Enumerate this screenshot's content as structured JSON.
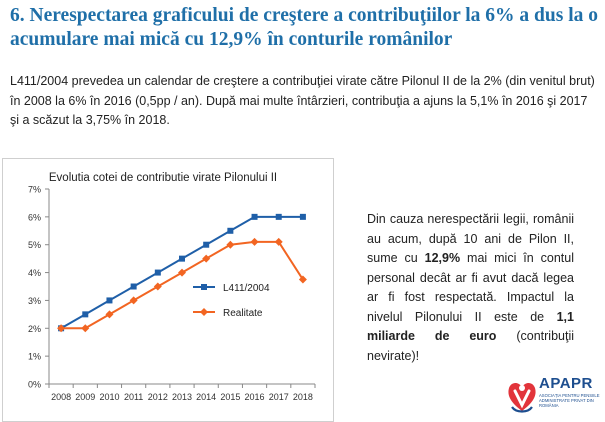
{
  "header": {
    "title": "6. Nerespectarea graficului de creştere a contribuţiilor la 6% a dus la o acumulare mai mică cu 12,9% în conturile românilor"
  },
  "intro": {
    "text": "L411/2004 prevedea un calendar de creştere a contribuţiei virate către Pilonul II de la 2% (din venitul brut) în 2008 la 6% în 2016 (0,5pp / an). După mai multe întârzieri, contribuţia a ajuns la 5,1% în 2016 şi 2017 şi a scăzut la 3,75% în 2018."
  },
  "side": {
    "p1_a": "Din cauza nerespectării legii, românii au acum, după 10 ani de Pilon II, sume cu ",
    "p1_b": "12,9%",
    "p1_c": " mai mici în contul personal decât ar fi avut dacă legea ar fi fost respectată.",
    "p2_a": "Impactul la nivelul Pilonului II este de ",
    "p2_b": "1,1 miliarde de euro",
    "p2_c": " (contribuţii nevirate)!"
  },
  "logo": {
    "name": "APAPR",
    "subtitle": "Asociația pentru pensiile administrate privat din România"
  },
  "chart_data": {
    "type": "line",
    "title": "Evolutia cotei de contributie virate Pilonului II",
    "categories": [
      "2008",
      "2009",
      "2010",
      "2011",
      "2012",
      "2013",
      "2014",
      "2015",
      "2016",
      "2017",
      "2018"
    ],
    "y_ticks": [
      "0%",
      "1%",
      "2%",
      "3%",
      "4%",
      "5%",
      "6%",
      "7%"
    ],
    "ylim": [
      0,
      7
    ],
    "grid": "none",
    "legend_position": "right",
    "series": [
      {
        "name": "L411/2004",
        "values": [
          2,
          2.5,
          3,
          3.5,
          4,
          4.5,
          5,
          5.5,
          6,
          6,
          6
        ],
        "color": "#1f5fa8",
        "marker": "square"
      },
      {
        "name": "Realitate",
        "values": [
          2,
          2,
          2.5,
          3,
          3.5,
          4,
          4.5,
          5,
          5.1,
          5.1,
          3.75
        ],
        "color": "#f26522",
        "marker": "diamond"
      }
    ]
  }
}
